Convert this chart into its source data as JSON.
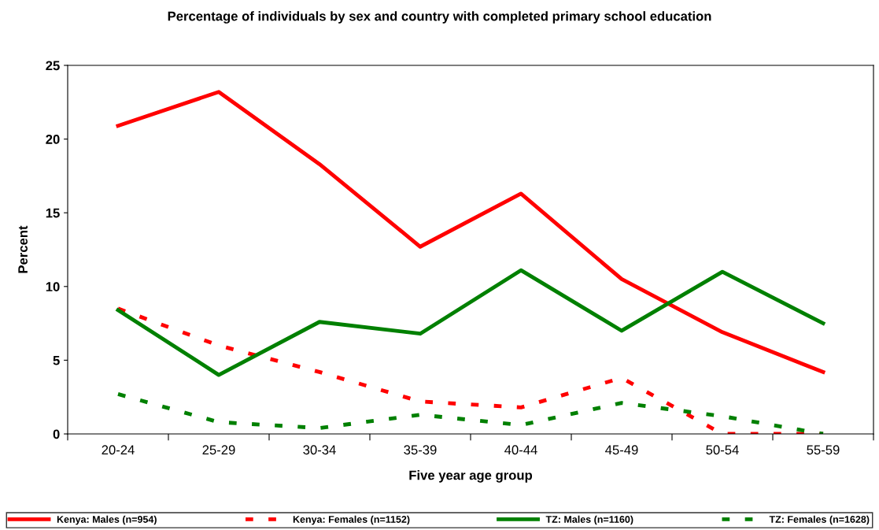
{
  "chart_data": {
    "type": "line",
    "title": "Percentage of individuals by sex and country with completed primary school education",
    "xlabel": "Five year age group",
    "ylabel": "Percent",
    "categories": [
      "20-24",
      "25-29",
      "30-34",
      "35-39",
      "40-44",
      "45-49",
      "50-54",
      "55-59"
    ],
    "series": [
      {
        "name": "Kenya: Males (n=954)",
        "color": "#ff0000",
        "line_style": "solid",
        "values": [
          20.9,
          23.2,
          18.3,
          12.7,
          16.3,
          10.5,
          6.9,
          4.2
        ]
      },
      {
        "name": "Kenya: Females (n=1152)",
        "color": "#ff0000",
        "line_style": "dashed",
        "values": [
          8.5,
          6.0,
          4.2,
          2.2,
          1.8,
          3.8,
          0,
          0
        ]
      },
      {
        "name": "TZ: Males (n=1160)",
        "color": "#008000",
        "line_style": "solid",
        "values": [
          8.4,
          4.0,
          7.6,
          6.8,
          11.1,
          7.0,
          11.0,
          7.5
        ]
      },
      {
        "name": "TZ: Females (n=1628)",
        "color": "#008000",
        "line_style": "dashed",
        "values": [
          2.7,
          0.8,
          0.4,
          1.3,
          0.6,
          2.1,
          1.2,
          0
        ]
      }
    ],
    "ylim": [
      0,
      25
    ],
    "yticks": [
      0,
      5,
      10,
      15,
      20,
      25
    ],
    "grid": false,
    "legend": "bottom",
    "marker": "none"
  }
}
